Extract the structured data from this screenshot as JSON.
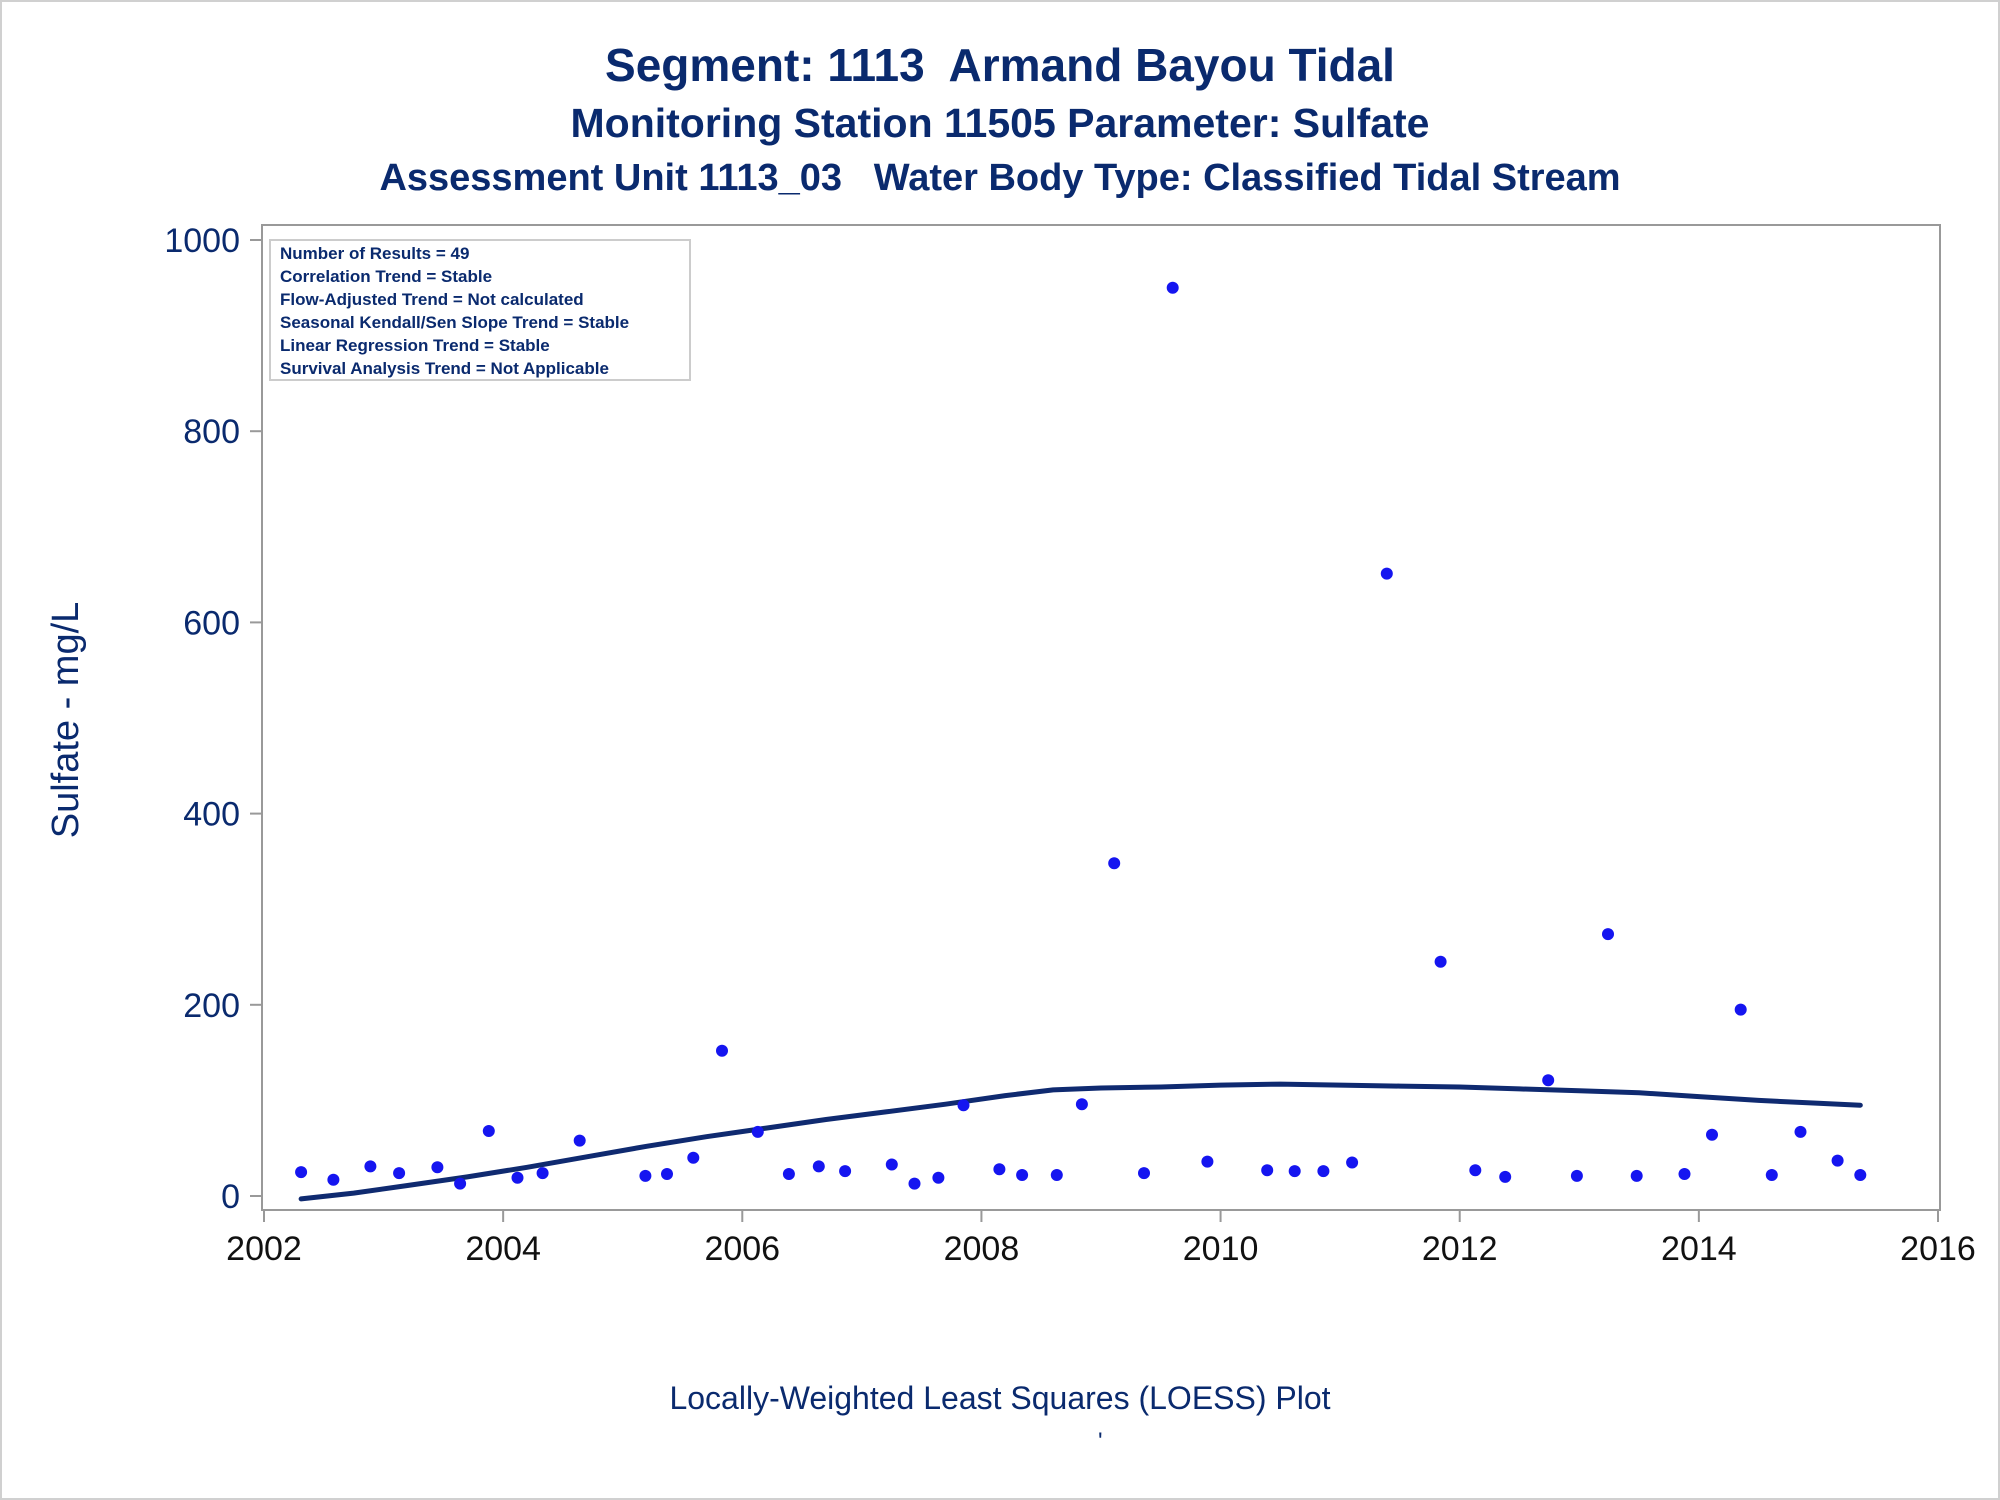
{
  "title": "Segment: 1113  Armand Bayou Tidal",
  "subtitle": "Monitoring Station 11505 Parameter: Sulfate",
  "subtitle2": "Assessment Unit 1113_03   Water Body Type: Classified Tidal Stream",
  "footnote": "Locally-Weighted Least Squares (LOESS) Plot",
  "footnote_mark": "'",
  "colors": {
    "text": "#0a2a6e",
    "points": "#1515f0",
    "loess_line": "#0f2a70",
    "axis": "#999999"
  },
  "chart_data": {
    "type": "scatter",
    "ylabel": "Sulfate - mg/L",
    "xlabel": "",
    "xlim": [
      2002,
      2016
    ],
    "ylim": [
      0,
      1000
    ],
    "xticks": [
      2002,
      2004,
      2006,
      2008,
      2010,
      2012,
      2014,
      2016
    ],
    "yticks": [
      0,
      200,
      400,
      600,
      800,
      1000
    ],
    "grid": false,
    "stats_box": [
      "Number of Results = 49",
      "Correlation Trend = Stable",
      "Flow-Adjusted Trend = Not calculated",
      "Seasonal Kendall/Sen Slope Trend = Stable",
      "Linear Regression Trend = Stable",
      "Survival Analysis Trend = Not Applicable"
    ],
    "points": [
      [
        2002.31,
        25
      ],
      [
        2002.58,
        17
      ],
      [
        2002.89,
        31
      ],
      [
        2003.13,
        24
      ],
      [
        2003.45,
        30
      ],
      [
        2003.64,
        13
      ],
      [
        2003.88,
        68
      ],
      [
        2004.12,
        19
      ],
      [
        2004.33,
        24
      ],
      [
        2004.64,
        58
      ],
      [
        2005.19,
        21
      ],
      [
        2005.37,
        23
      ],
      [
        2005.59,
        40
      ],
      [
        2005.83,
        152
      ],
      [
        2006.13,
        67
      ],
      [
        2006.39,
        23
      ],
      [
        2006.64,
        31
      ],
      [
        2006.86,
        26
      ],
      [
        2007.25,
        33
      ],
      [
        2007.44,
        13
      ],
      [
        2007.64,
        19
      ],
      [
        2007.85,
        95
      ],
      [
        2008.15,
        28
      ],
      [
        2008.34,
        22
      ],
      [
        2008.63,
        22
      ],
      [
        2008.84,
        96
      ],
      [
        2009.11,
        348
      ],
      [
        2009.36,
        24
      ],
      [
        2009.6,
        950
      ],
      [
        2009.89,
        36
      ],
      [
        2010.39,
        27
      ],
      [
        2010.62,
        26
      ],
      [
        2010.86,
        26
      ],
      [
        2011.1,
        35
      ],
      [
        2011.39,
        651
      ],
      [
        2011.84,
        245
      ],
      [
        2012.13,
        27
      ],
      [
        2012.38,
        20
      ],
      [
        2012.74,
        121
      ],
      [
        2012.98,
        21
      ],
      [
        2013.24,
        274
      ],
      [
        2013.48,
        21
      ],
      [
        2013.88,
        23
      ],
      [
        2014.11,
        64
      ],
      [
        2014.35,
        195
      ],
      [
        2014.61,
        22
      ],
      [
        2014.85,
        67
      ],
      [
        2015.16,
        37
      ],
      [
        2015.35,
        22
      ]
    ],
    "loess": [
      [
        2002.31,
        -3
      ],
      [
        2002.75,
        3
      ],
      [
        2003.2,
        11
      ],
      [
        2003.7,
        20
      ],
      [
        2004.2,
        30
      ],
      [
        2004.7,
        41
      ],
      [
        2005.2,
        52
      ],
      [
        2005.7,
        62
      ],
      [
        2006.2,
        71
      ],
      [
        2006.7,
        80
      ],
      [
        2007.2,
        88
      ],
      [
        2007.7,
        96
      ],
      [
        2008.2,
        105
      ],
      [
        2008.6,
        111
      ],
      [
        2009.0,
        113
      ],
      [
        2009.5,
        114
      ],
      [
        2010.0,
        116
      ],
      [
        2010.5,
        117
      ],
      [
        2011.0,
        116
      ],
      [
        2011.5,
        115
      ],
      [
        2012.0,
        114
      ],
      [
        2012.5,
        112
      ],
      [
        2013.0,
        110
      ],
      [
        2013.5,
        108
      ],
      [
        2014.0,
        104
      ],
      [
        2014.5,
        100
      ],
      [
        2015.0,
        97
      ],
      [
        2015.35,
        95
      ]
    ]
  }
}
